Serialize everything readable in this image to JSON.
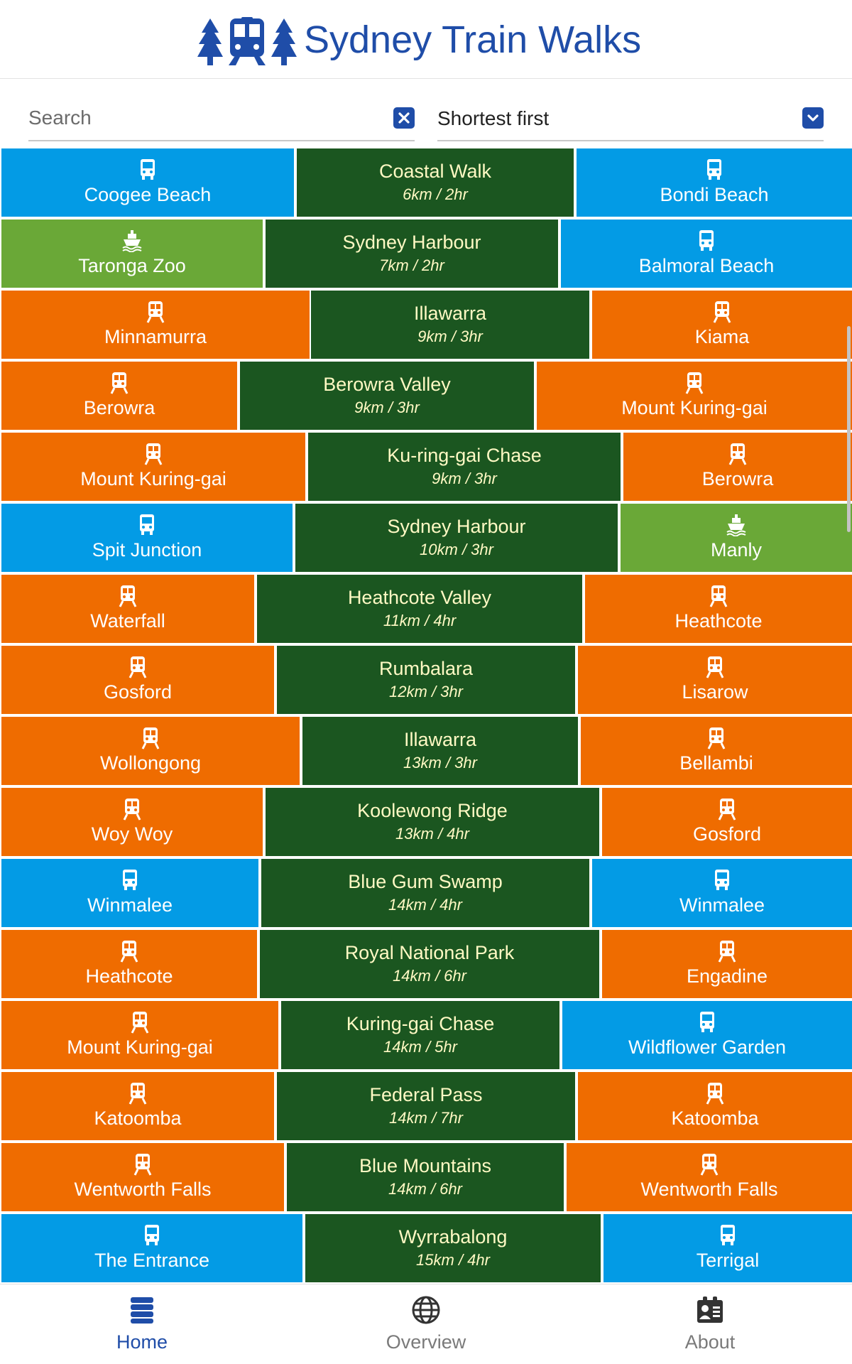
{
  "app": {
    "title": "Sydney Train Walks",
    "brand_color": "#1f4da8"
  },
  "controls": {
    "search_placeholder": "Search",
    "search_value": "",
    "clear_icon": "close-icon",
    "sort_selected": "Shortest first",
    "sort_icon": "chevron-down-icon"
  },
  "colors": {
    "train": "#ef6c00",
    "bus": "#039be5",
    "ferry": "#6aa837",
    "walk_bg": "#1b5620",
    "walk_text": "#fff9c4"
  },
  "walks": [
    {
      "start": {
        "name": "Coogee Beach",
        "mode": "bus"
      },
      "walk": {
        "name": "Coastal Walk",
        "distance": "6km / 2hr"
      },
      "end": {
        "name": "Bondi Beach",
        "mode": "bus"
      }
    },
    {
      "start": {
        "name": "Taronga Zoo",
        "mode": "ferry"
      },
      "walk": {
        "name": "Sydney Harbour",
        "distance": "7km / 2hr"
      },
      "end": {
        "name": "Balmoral Beach",
        "mode": "bus"
      }
    },
    {
      "start": {
        "name": "Minnamurra",
        "mode": "train"
      },
      "walk": {
        "name": "Illawarra",
        "distance": "9km / 3hr"
      },
      "end": {
        "name": "Kiama",
        "mode": "train"
      }
    },
    {
      "start": {
        "name": "Berowra",
        "mode": "train"
      },
      "walk": {
        "name": "Berowra Valley",
        "distance": "9km / 3hr"
      },
      "end": {
        "name": "Mount Kuring-gai",
        "mode": "train"
      }
    },
    {
      "start": {
        "name": "Mount Kuring-gai",
        "mode": "train"
      },
      "walk": {
        "name": "Ku-ring-gai Chase",
        "distance": "9km / 3hr"
      },
      "end": {
        "name": "Berowra",
        "mode": "train"
      }
    },
    {
      "start": {
        "name": "Spit Junction",
        "mode": "bus"
      },
      "walk": {
        "name": "Sydney Harbour",
        "distance": "10km / 3hr"
      },
      "end": {
        "name": "Manly",
        "mode": "ferry"
      }
    },
    {
      "start": {
        "name": "Waterfall",
        "mode": "train"
      },
      "walk": {
        "name": "Heathcote Valley",
        "distance": "11km / 4hr"
      },
      "end": {
        "name": "Heathcote",
        "mode": "train"
      }
    },
    {
      "start": {
        "name": "Gosford",
        "mode": "train"
      },
      "walk": {
        "name": "Rumbalara",
        "distance": "12km / 3hr"
      },
      "end": {
        "name": "Lisarow",
        "mode": "train"
      }
    },
    {
      "start": {
        "name": "Wollongong",
        "mode": "train"
      },
      "walk": {
        "name": "Illawarra",
        "distance": "13km / 3hr"
      },
      "end": {
        "name": "Bellambi",
        "mode": "train"
      }
    },
    {
      "start": {
        "name": "Woy Woy",
        "mode": "train"
      },
      "walk": {
        "name": "Koolewong Ridge",
        "distance": "13km / 4hr"
      },
      "end": {
        "name": "Gosford",
        "mode": "train"
      }
    },
    {
      "start": {
        "name": "Winmalee",
        "mode": "bus"
      },
      "walk": {
        "name": "Blue Gum Swamp",
        "distance": "14km / 4hr"
      },
      "end": {
        "name": "Winmalee",
        "mode": "bus"
      }
    },
    {
      "start": {
        "name": "Heathcote",
        "mode": "train"
      },
      "walk": {
        "name": "Royal National Park",
        "distance": "14km / 6hr"
      },
      "end": {
        "name": "Engadine",
        "mode": "train"
      }
    },
    {
      "start": {
        "name": "Mount Kuring-gai",
        "mode": "train"
      },
      "walk": {
        "name": "Kuring-gai Chase",
        "distance": "14km / 5hr"
      },
      "end": {
        "name": "Wildflower Garden",
        "mode": "bus"
      }
    },
    {
      "start": {
        "name": "Katoomba",
        "mode": "train"
      },
      "walk": {
        "name": "Federal Pass",
        "distance": "14km / 7hr"
      },
      "end": {
        "name": "Katoomba",
        "mode": "train"
      }
    },
    {
      "start": {
        "name": "Wentworth Falls",
        "mode": "train"
      },
      "walk": {
        "name": "Blue Mountains",
        "distance": "14km / 6hr"
      },
      "end": {
        "name": "Wentworth Falls",
        "mode": "train"
      }
    },
    {
      "start": {
        "name": "The Entrance",
        "mode": "bus"
      },
      "walk": {
        "name": "Wyrrabalong",
        "distance": "15km / 4hr"
      },
      "end": {
        "name": "Terrigal",
        "mode": "bus"
      }
    }
  ],
  "nav": [
    {
      "label": "Home",
      "icon": "list-icon",
      "active": true
    },
    {
      "label": "Overview",
      "icon": "globe-icon",
      "active": false
    },
    {
      "label": "About",
      "icon": "id-card-icon",
      "active": false
    }
  ]
}
